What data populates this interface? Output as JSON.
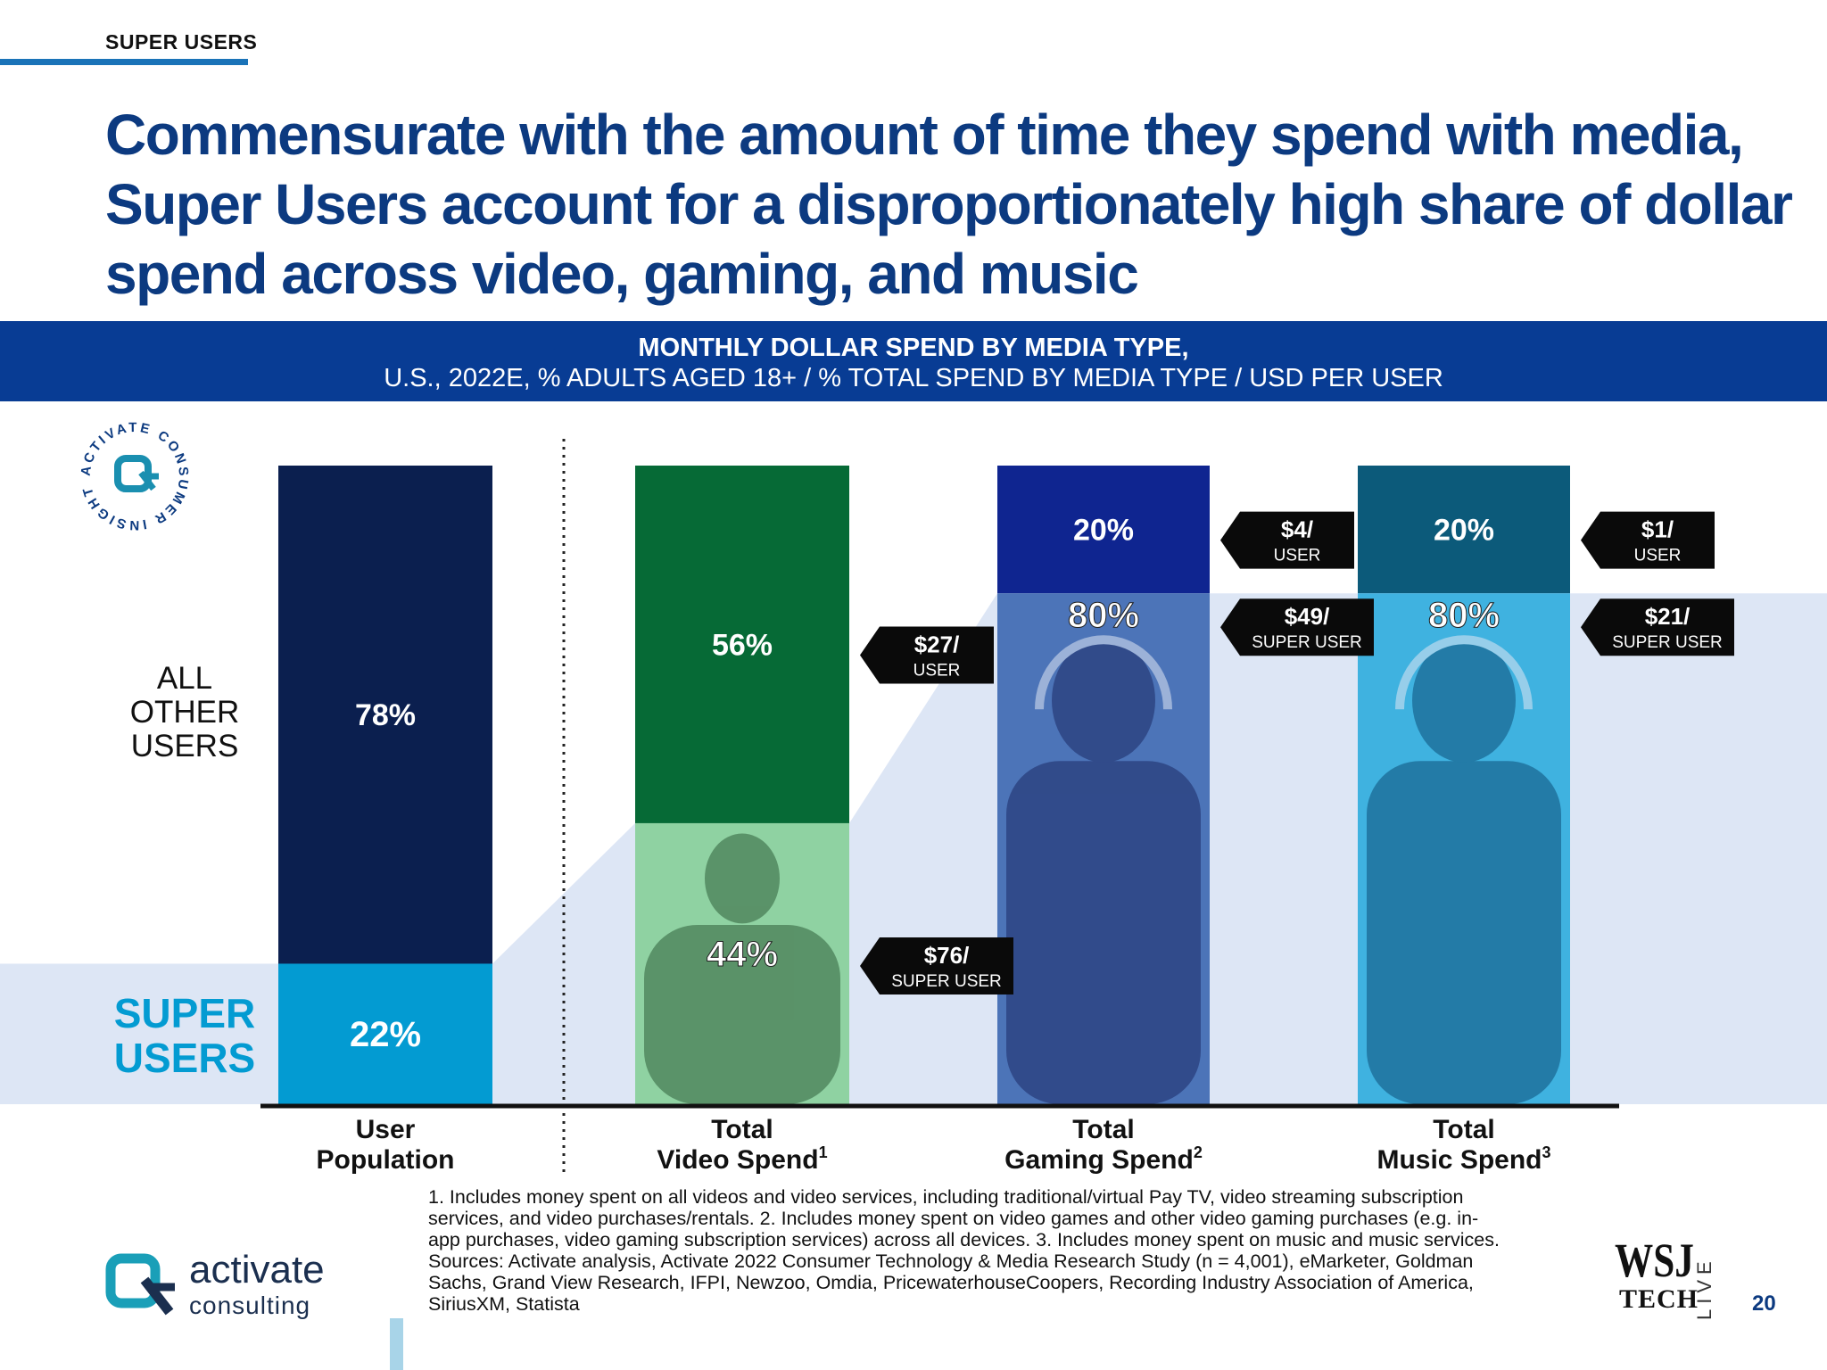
{
  "header": {
    "section_tag": "SUPER USERS",
    "headline_lines": [
      "Commensurate with the amount of time they spend with media,",
      "Super Users account for a disproportionately high share of dollar",
      "spend across video, gaming, and music"
    ]
  },
  "banner": {
    "title": "MONTHLY DOLLAR SPEND BY MEDIA TYPE,",
    "subtitle": "U.S., 2022E, % ADULTS AGED 18+ / % TOTAL SPEND BY MEDIA TYPE / USD PER USER"
  },
  "badge": {
    "ring_text": "ACTIVATE CONSUMER INSIGHT",
    "icon": "activate-consumer-insight-seal"
  },
  "chart_data": {
    "type": "bar",
    "stacked": true,
    "ylim": [
      0,
      100
    ],
    "unit": "%",
    "categories": [
      "User Population",
      "Total Video Spend",
      "Total Gaming Spend",
      "Total Music Spend"
    ],
    "category_labels": [
      {
        "line1": "User",
        "line2": "Population",
        "note": ""
      },
      {
        "line1": "Total",
        "line2": "Video Spend",
        "note": "1"
      },
      {
        "line1": "Total",
        "line2": "Gaming Spend",
        "note": "2"
      },
      {
        "line1": "Total",
        "line2": "Music Spend",
        "note": "3"
      }
    ],
    "series": [
      {
        "name": "SUPER USERS",
        "values": [
          22,
          44,
          80,
          80
        ],
        "labels": [
          "22%",
          "44%",
          "80%",
          "80%"
        ]
      },
      {
        "name": "ALL OTHER USERS",
        "values": [
          78,
          56,
          20,
          20
        ],
        "labels": [
          "78%",
          "56%",
          "20%",
          "20%"
        ]
      }
    ],
    "legend": {
      "position": "left",
      "all_other_lines": [
        "ALL",
        "OTHER",
        "USERS"
      ],
      "super_lines": [
        "SUPER",
        "USERS"
      ]
    },
    "spend_per_user": [
      null,
      {
        "all_other": {
          "amount": "$27/",
          "unit": "USER"
        },
        "super": {
          "amount": "$76/",
          "unit": "SUPER USER"
        }
      },
      {
        "all_other": {
          "amount": "$4/",
          "unit": "USER"
        },
        "super": {
          "amount": "$49/",
          "unit": "SUPER USER"
        }
      },
      {
        "all_other": {
          "amount": "$1/",
          "unit": "USER"
        },
        "super": {
          "amount": "$21/",
          "unit": "SUPER USER"
        }
      }
    ],
    "photos": [
      null,
      "smiling-man-with-remote-and-popcorn",
      "smiling-woman-with-headphones-and-game-controller",
      "woman-with-headphones-listening-to-music"
    ],
    "colors": {
      "all_other": [
        "#0b1f4f",
        "#066a36",
        "#0f2590",
        "#0c5a7a"
      ],
      "super": [
        "#039bd2",
        "#8fd2a2",
        "#4c74b8",
        "#3fb2e0"
      ],
      "super_band": "#dde6f5",
      "text": "#ffffff",
      "legend_all_other": "#111111",
      "legend_super": "#039bd2"
    }
  },
  "footnote_lines": [
    "1. Includes money spent on all videos and video services, including traditional/virtual Pay TV, video streaming subscription",
    "services, and video purchases/rentals.  2. Includes money spent on video games and other video gaming purchases (e.g. in-",
    "app purchases, video gaming subscription services) across all devices.  3. Includes money spent on music and music services.",
    "Sources: Activate analysis, Activate 2022 Consumer Technology & Media Research Study (n = 4,001), eMarketer, Goldman",
    "Sachs, Grand View Research, IFPI, Newzoo, Omdia, PricewaterhouseCoopers, Recording Industry Association of America,",
    "SiriusXM, Statista"
  ],
  "footer": {
    "logo_word": "activate",
    "logo_sub": "consulting",
    "logo_icon": "activate-logo-icon",
    "wsj_main": "WSJ",
    "wsj_tech": "TECH",
    "wsj_live": "LIVE",
    "page_number": "20"
  }
}
